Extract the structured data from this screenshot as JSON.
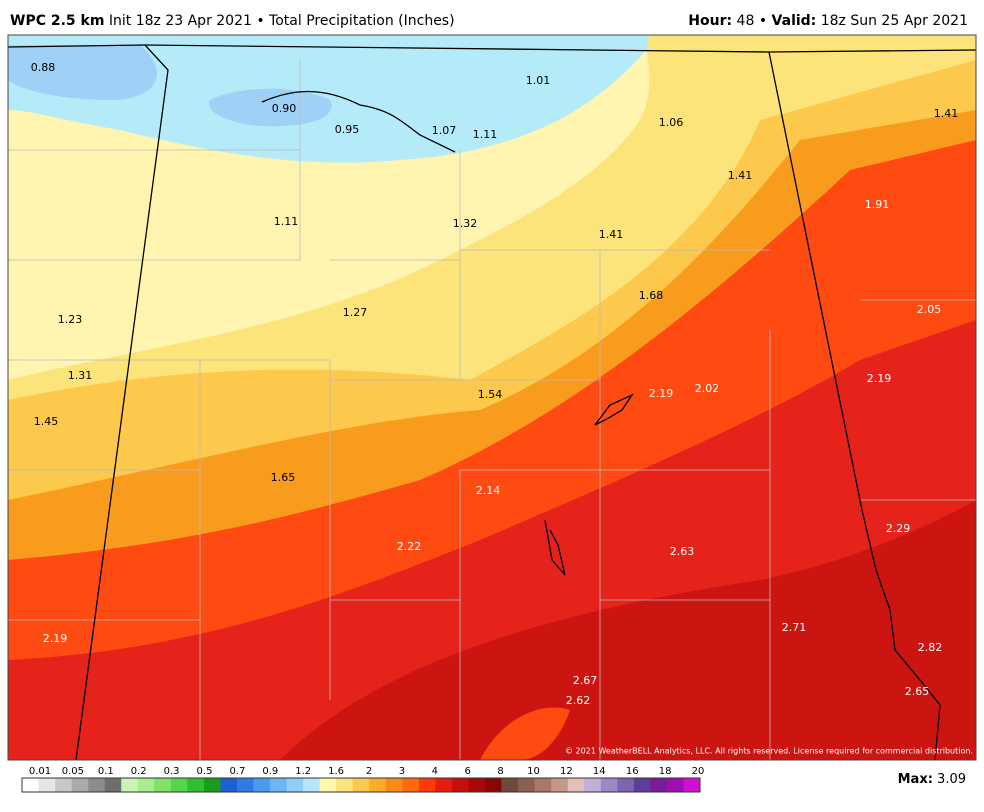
{
  "header": {
    "model": "WPC 2.5 km",
    "description": "Init 18z 23 Apr 2021 • Total Precipitation (Inches)",
    "hour_label": "Hour:",
    "hour": "48",
    "separator": "•",
    "valid_label": "Valid:",
    "valid": "18z Sun 25 Apr 2021"
  },
  "map": {
    "labels": [
      "0.88",
      "0.90",
      "0.95",
      "1.07",
      "1.11",
      "1.01",
      "1.06",
      "1.41",
      "1.41",
      "1.91",
      "1.11",
      "1.32",
      "1.41",
      "1.68",
      "2.05",
      "1.23",
      "1.27",
      "1.31",
      "2.19",
      "2.02",
      "2.19",
      "1.54",
      "1.45",
      "1.65",
      "2.14",
      "2.29",
      "2.22",
      "2.63",
      "2.19",
      "2.71",
      "2.82",
      "2.67",
      "2.62",
      "2.65"
    ],
    "copyright": "© 2021 WeatherBELL Analytics, LLC. All rights reserved. License required for commercial distribution."
  },
  "colorbar": {
    "labels": [
      "0.01",
      "0.05",
      "0.1",
      "0.2",
      "0.3",
      "0.5",
      "0.7",
      "0.9",
      "1.2",
      "1.6",
      "2",
      "3",
      "4",
      "6",
      "8",
      "10",
      "12",
      "14",
      "16",
      "18",
      "20"
    ],
    "colors": [
      "#ffffff",
      "#e6e6e6",
      "#c8c8c8",
      "#aaaaaa",
      "#8c8c8c",
      "#6e6e6e",
      "#c8f5b4",
      "#a8ee8e",
      "#7fe36a",
      "#55d648",
      "#2fc02f",
      "#1a9e1a",
      "#1f5fd6",
      "#2e7be8",
      "#4a9af0",
      "#6cb6f5",
      "#8fd0f8",
      "#b4e6fb",
      "#fff7aa",
      "#fde47a",
      "#fcc94c",
      "#fbac2a",
      "#f98c14",
      "#ff6a10",
      "#ff3a0a",
      "#e81c0c",
      "#c80e0a",
      "#a8080a",
      "#8a0606",
      "#6e4a3a",
      "#8c6050",
      "#a87868",
      "#c49888",
      "#e0c0b8",
      "#c0b0d8",
      "#9c88c4",
      "#7c64b0",
      "#5e3c9a",
      "#7a1a9a",
      "#a00eb0",
      "#d010d0"
    ],
    "max_label": "Max:",
    "max": "3.09"
  }
}
